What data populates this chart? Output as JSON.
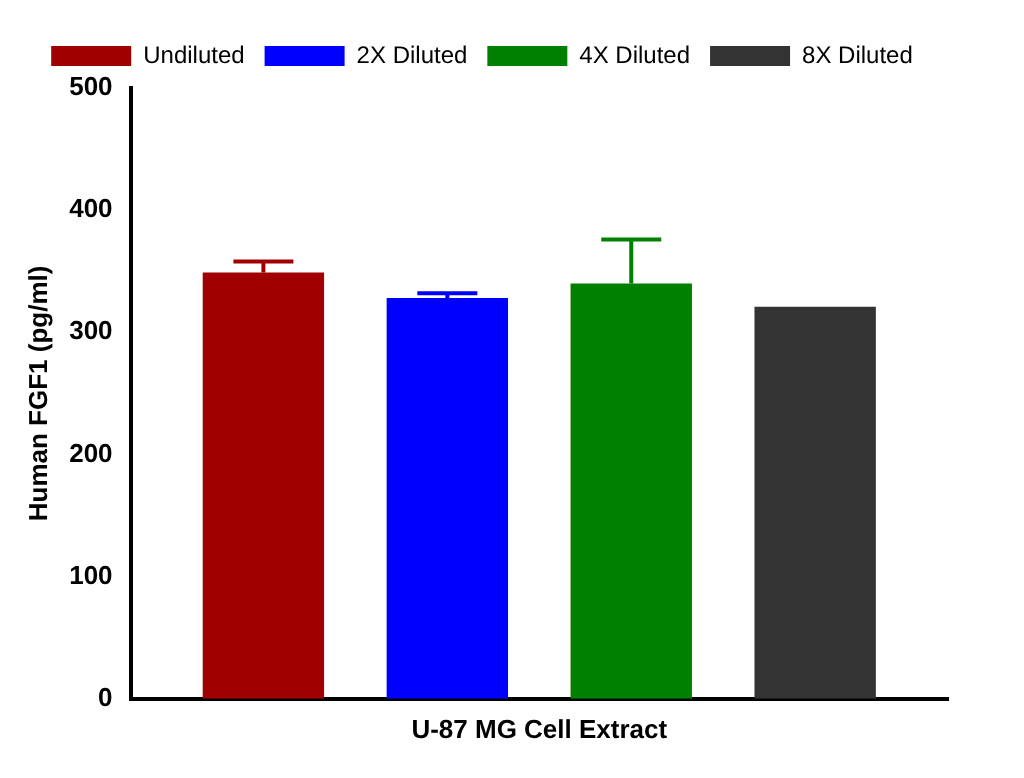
{
  "chart_data": {
    "type": "bar",
    "categories": [
      "U-87 MG Cell Extract"
    ],
    "ylabel": "Human FGF1 (pg/ml)",
    "series": [
      {
        "name": "Undiluted",
        "color": "#a00000",
        "values": [
          349
        ],
        "errors": [
          9
        ]
      },
      {
        "name": "2X Diluted",
        "color": "#0000ff",
        "values": [
          328
        ],
        "errors": [
          4
        ]
      },
      {
        "name": "4X Diluted",
        "color": "#008000",
        "values": [
          340
        ],
        "errors": [
          36
        ]
      },
      {
        "name": "8X Diluted",
        "color": "#333333",
        "values": [
          321
        ],
        "errors": [
          null
        ]
      }
    ],
    "ylim": [
      0,
      500
    ],
    "yticks": [
      0,
      100,
      200,
      300,
      400,
      500
    ],
    "grid": false,
    "legend": "top"
  }
}
